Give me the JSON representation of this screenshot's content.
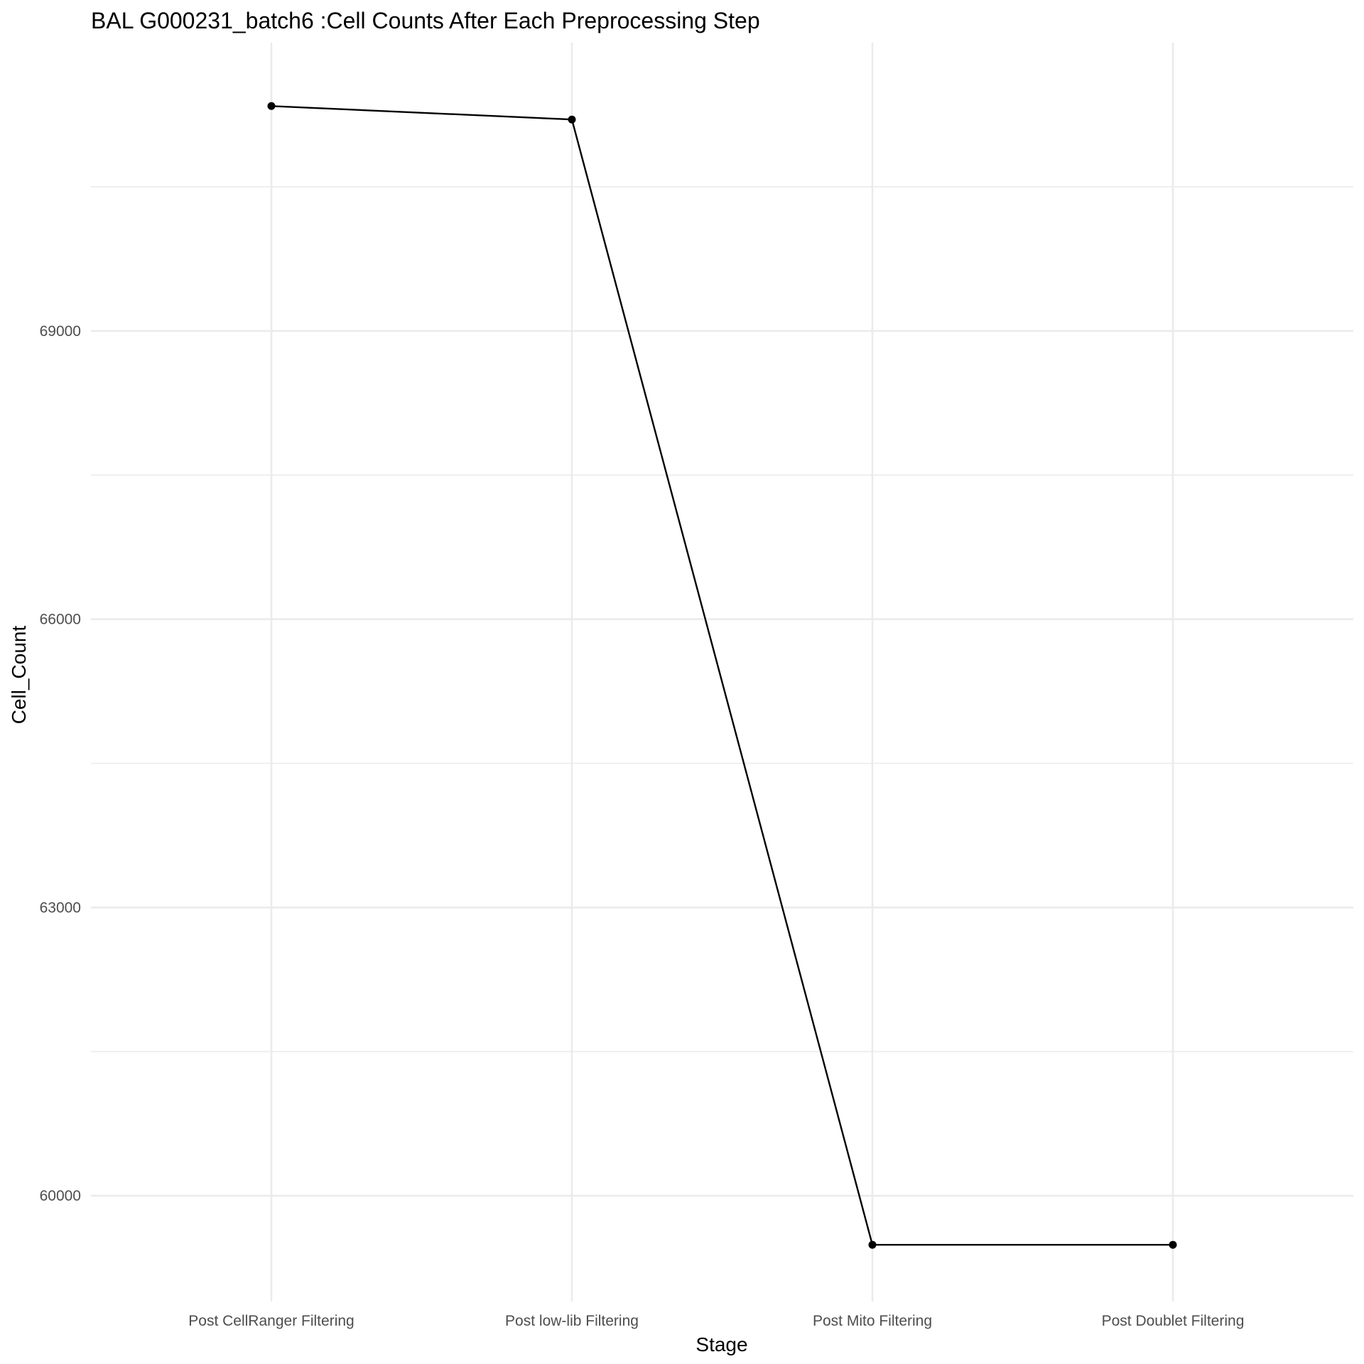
{
  "chart_data": {
    "type": "line",
    "title": "BAL G000231_batch6 :Cell Counts After Each Preprocessing Step",
    "xlabel": "Stage",
    "ylabel": "Cell_Count",
    "categories": [
      "Post CellRanger Filtering",
      "Post low-lib Filtering",
      "Post Mito Filtering",
      "Post Doublet Filtering"
    ],
    "values": [
      71340,
      71200,
      59490,
      59490
    ],
    "y_ticks": [
      60000,
      63000,
      66000,
      69000
    ],
    "y_tick_labels": [
      "60000",
      "63000",
      "66000",
      "69000"
    ],
    "ylim": [
      58900,
      72000
    ],
    "grid": true,
    "legend": "none",
    "colors": {
      "line": "#000000",
      "grid": "#ebebeb",
      "background": "#ffffff"
    }
  }
}
